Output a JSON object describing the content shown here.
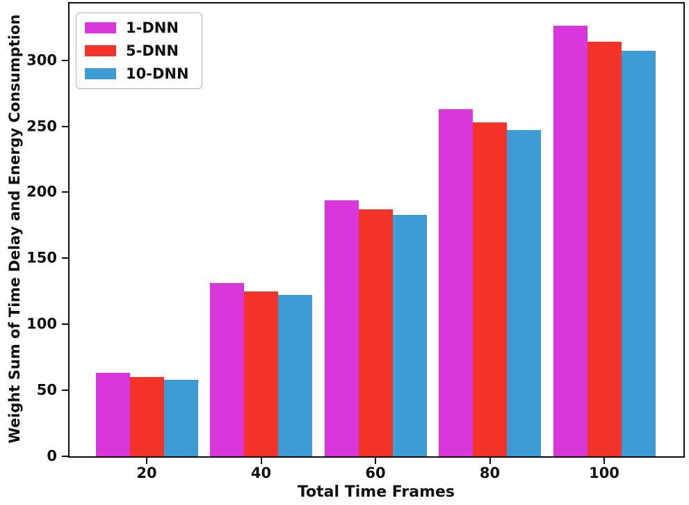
{
  "chart_data": {
    "type": "bar",
    "title": "",
    "xlabel": "Total Time Frames",
    "ylabel": "Weight Sum of Time Delay and Energy Consumption",
    "categories": [
      "20",
      "40",
      "60",
      "80",
      "100"
    ],
    "series": [
      {
        "name": "1-DNN",
        "color": "#d937dc",
        "values": [
          63,
          131,
          194,
          263,
          326
        ]
      },
      {
        "name": "5-DNN",
        "color": "#f13427",
        "values": [
          60,
          125,
          187,
          253,
          314
        ]
      },
      {
        "name": "10-DNN",
        "color": "#3d9bd5",
        "values": [
          58,
          122,
          183,
          247,
          307
        ]
      }
    ],
    "ylim": [
      0,
      343
    ],
    "yticks": [
      0,
      50,
      100,
      150,
      200,
      250,
      300
    ],
    "legend_position": "upper left",
    "grid": false,
    "axis_color": "#0d0d0d"
  }
}
